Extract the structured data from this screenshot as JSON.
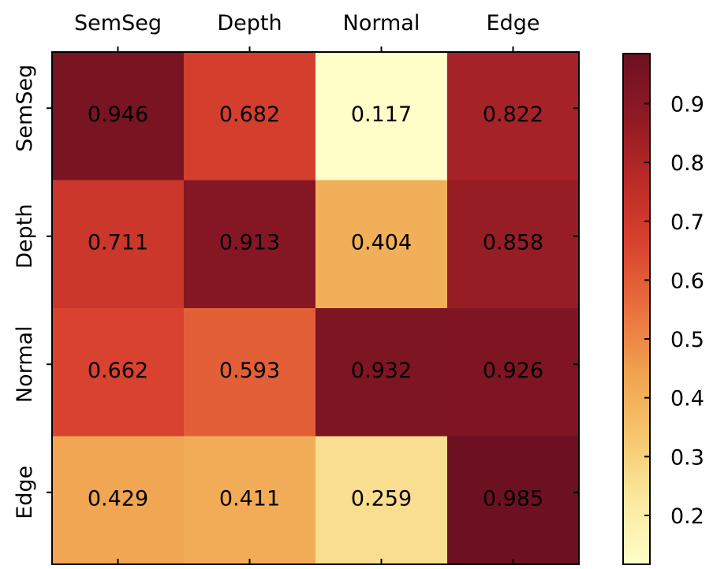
{
  "chart_data": {
    "type": "heatmap",
    "title": "",
    "xlabel": "",
    "ylabel": "",
    "columns": [
      "SemSeg",
      "Depth",
      "Normal",
      "Edge"
    ],
    "rows": [
      "SemSeg",
      "Depth",
      "Normal",
      "Edge"
    ],
    "values": [
      [
        "0.946",
        "0.682",
        "0.117",
        "0.822"
      ],
      [
        "0.711",
        "0.913",
        "0.404",
        "0.858"
      ],
      [
        "0.662",
        "0.593",
        "0.932",
        "0.926"
      ],
      [
        "0.429",
        "0.411",
        "0.259",
        "0.985"
      ]
    ],
    "colorbar": {
      "range": [
        0.117,
        0.985
      ],
      "ticks": [
        "0.2",
        "0.3",
        "0.4",
        "0.5",
        "0.6",
        "0.7",
        "0.8",
        "0.9"
      ]
    },
    "colormap": [
      "#fffdc8",
      "#fbe9a0",
      "#f6c66d",
      "#f0a24f",
      "#e9703f",
      "#d9432e",
      "#bb2a28",
      "#8f1a24",
      "#6d1021"
    ]
  }
}
